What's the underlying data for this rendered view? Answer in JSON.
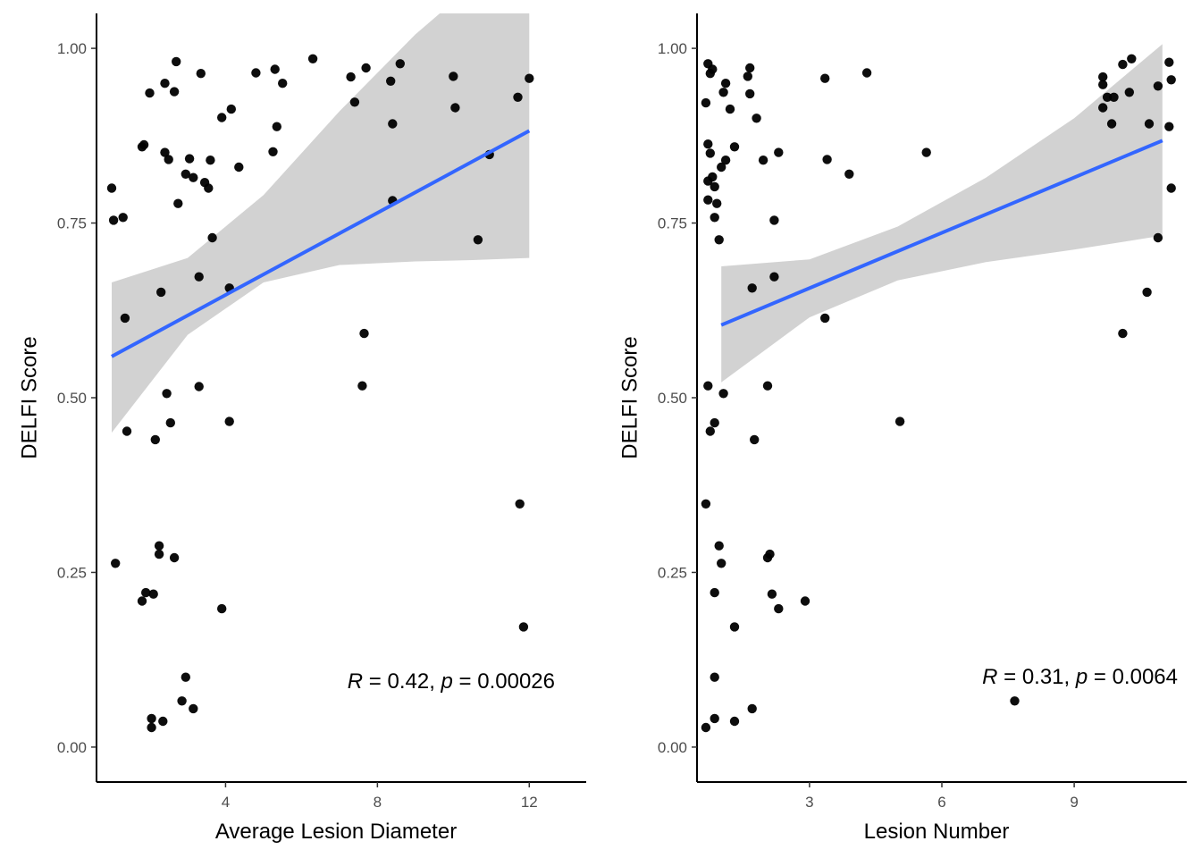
{
  "chart_data": [
    {
      "type": "scatter",
      "xlabel": "Average Lesion Diameter",
      "ylabel": "DELFI Score",
      "xlim": [
        0.6,
        13.5
      ],
      "ylim": [
        -0.05,
        1.05
      ],
      "xticks": [
        4,
        8,
        12
      ],
      "yticks": [
        0.0,
        0.25,
        0.5,
        0.75,
        1.0
      ],
      "ytick_labels": [
        "0.00",
        "0.25",
        "0.50",
        "0.75",
        "1.00"
      ],
      "grid": false,
      "annotation": {
        "R": "0.42",
        "p": "0.00026"
      },
      "fit": {
        "x": [
          1.0,
          12.0
        ],
        "y": [
          0.559,
          0.882
        ]
      },
      "ci_upper": [
        [
          1.0,
          0.665
        ],
        [
          3.0,
          0.7
        ],
        [
          5.0,
          0.79
        ],
        [
          7.0,
          0.91
        ],
        [
          9.0,
          1.02
        ],
        [
          10.5,
          1.09
        ],
        [
          12.0,
          1.175
        ]
      ],
      "ci_lower": [
        [
          1.0,
          0.45
        ],
        [
          3.0,
          0.59
        ],
        [
          5.0,
          0.665
        ],
        [
          7.0,
          0.69
        ],
        [
          9.0,
          0.695
        ],
        [
          10.5,
          0.697
        ],
        [
          12.0,
          0.7
        ]
      ],
      "points": [
        [
          1.0,
          0.8
        ],
        [
          1.05,
          0.754
        ],
        [
          1.3,
          0.758
        ],
        [
          1.35,
          0.614
        ],
        [
          1.4,
          0.452
        ],
        [
          1.1,
          0.263
        ],
        [
          1.8,
          0.859
        ],
        [
          1.85,
          0.862
        ],
        [
          2.0,
          0.936
        ],
        [
          2.05,
          0.041
        ],
        [
          2.05,
          0.028
        ],
        [
          2.1,
          0.219
        ],
        [
          2.15,
          0.44
        ],
        [
          1.9,
          0.221
        ],
        [
          1.8,
          0.209
        ],
        [
          2.25,
          0.276
        ],
        [
          2.25,
          0.288
        ],
        [
          2.3,
          0.651
        ],
        [
          2.4,
          0.95
        ],
        [
          2.4,
          0.851
        ],
        [
          2.45,
          0.506
        ],
        [
          2.5,
          0.841
        ],
        [
          2.55,
          0.464
        ],
        [
          2.65,
          0.938
        ],
        [
          2.7,
          0.981
        ],
        [
          2.75,
          0.778
        ],
        [
          2.65,
          0.271
        ],
        [
          2.35,
          0.037
        ],
        [
          2.85,
          0.066
        ],
        [
          2.95,
          0.1
        ],
        [
          2.95,
          0.82
        ],
        [
          3.05,
          0.842
        ],
        [
          3.15,
          0.815
        ],
        [
          3.15,
          0.055
        ],
        [
          3.3,
          0.673
        ],
        [
          3.3,
          0.516
        ],
        [
          3.35,
          0.964
        ],
        [
          3.45,
          0.808
        ],
        [
          3.55,
          0.8
        ],
        [
          3.6,
          0.84
        ],
        [
          3.65,
          0.729
        ],
        [
          3.9,
          0.901
        ],
        [
          3.9,
          0.198
        ],
        [
          4.1,
          0.466
        ],
        [
          4.1,
          0.657
        ],
        [
          4.15,
          0.913
        ],
        [
          4.35,
          0.83
        ],
        [
          4.8,
          0.965
        ],
        [
          5.25,
          0.852
        ],
        [
          5.3,
          0.97
        ],
        [
          5.35,
          0.888
        ],
        [
          5.5,
          0.95
        ],
        [
          6.3,
          0.985
        ],
        [
          7.3,
          0.959
        ],
        [
          7.4,
          0.923
        ],
        [
          7.6,
          0.517
        ],
        [
          7.65,
          0.592
        ],
        [
          7.7,
          0.972
        ],
        [
          8.35,
          0.953
        ],
        [
          8.4,
          0.892
        ],
        [
          8.4,
          0.782
        ],
        [
          8.6,
          0.978
        ],
        [
          10.0,
          0.96
        ],
        [
          10.05,
          0.915
        ],
        [
          10.65,
          0.726
        ],
        [
          10.95,
          0.848
        ],
        [
          11.7,
          0.93
        ],
        [
          11.75,
          0.348
        ],
        [
          11.85,
          0.172
        ],
        [
          12.0,
          0.957
        ]
      ]
    },
    {
      "type": "scatter",
      "xlabel": "Lesion Number",
      "ylabel": "DELFI Score",
      "xlim": [
        0.45,
        11.55
      ],
      "ylim": [
        -0.05,
        1.05
      ],
      "xticks": [
        3,
        6,
        9
      ],
      "yticks": [
        0.0,
        0.25,
        0.5,
        0.75,
        1.0
      ],
      "ytick_labels": [
        "0.00",
        "0.25",
        "0.50",
        "0.75",
        "1.00"
      ],
      "grid": false,
      "annotation": {
        "R": "0.31",
        "p": "0.0064"
      },
      "fit": {
        "x": [
          1.0,
          11.0
        ],
        "y": [
          0.604,
          0.868
        ]
      },
      "ci_upper": [
        [
          1.0,
          0.688
        ],
        [
          3.0,
          0.698
        ],
        [
          5.0,
          0.745
        ],
        [
          7.0,
          0.815
        ],
        [
          9.0,
          0.9
        ],
        [
          11.0,
          1.006
        ]
      ],
      "ci_lower": [
        [
          1.0,
          0.522
        ],
        [
          3.0,
          0.615
        ],
        [
          5.0,
          0.668
        ],
        [
          7.0,
          0.694
        ],
        [
          9.0,
          0.712
        ],
        [
          11.0,
          0.732
        ]
      ],
      "points": [
        [
          0.65,
          0.922
        ],
        [
          0.7,
          0.978
        ],
        [
          0.75,
          0.964
        ],
        [
          0.8,
          0.97
        ],
        [
          0.7,
          0.863
        ],
        [
          0.75,
          0.85
        ],
        [
          0.7,
          0.81
        ],
        [
          0.7,
          0.783
        ],
        [
          0.8,
          0.816
        ],
        [
          0.85,
          0.802
        ],
        [
          0.85,
          0.758
        ],
        [
          0.9,
          0.778
        ],
        [
          0.95,
          0.726
        ],
        [
          1.0,
          0.83
        ],
        [
          1.05,
          0.937
        ],
        [
          1.1,
          0.84
        ],
        [
          1.1,
          0.95
        ],
        [
          1.2,
          0.913
        ],
        [
          1.3,
          0.859
        ],
        [
          1.6,
          0.96
        ],
        [
          1.65,
          0.972
        ],
        [
          1.65,
          0.935
        ],
        [
          1.8,
          0.9
        ],
        [
          1.95,
          0.84
        ],
        [
          2.3,
          0.851
        ],
        [
          1.7,
          0.657
        ],
        [
          2.2,
          0.673
        ],
        [
          2.2,
          0.754
        ],
        [
          0.7,
          0.517
        ],
        [
          0.75,
          0.452
        ],
        [
          0.85,
          0.464
        ],
        [
          1.05,
          0.506
        ],
        [
          1.75,
          0.44
        ],
        [
          2.05,
          0.517
        ],
        [
          0.65,
          0.348
        ],
        [
          0.95,
          0.288
        ],
        [
          1.0,
          0.263
        ],
        [
          0.85,
          0.221
        ],
        [
          2.05,
          0.271
        ],
        [
          2.1,
          0.276
        ],
        [
          2.15,
          0.219
        ],
        [
          2.3,
          0.198
        ],
        [
          2.9,
          0.209
        ],
        [
          1.3,
          0.172
        ],
        [
          0.85,
          0.1
        ],
        [
          0.85,
          0.041
        ],
        [
          0.65,
          0.028
        ],
        [
          1.3,
          0.037
        ],
        [
          1.7,
          0.055
        ],
        [
          3.35,
          0.957
        ],
        [
          4.3,
          0.965
        ],
        [
          3.4,
          0.841
        ],
        [
          3.9,
          0.82
        ],
        [
          5.65,
          0.851
        ],
        [
          3.35,
          0.614
        ],
        [
          5.05,
          0.466
        ],
        [
          7.65,
          0.066
        ],
        [
          9.65,
          0.959
        ],
        [
          9.65,
          0.948
        ],
        [
          9.75,
          0.93
        ],
        [
          9.65,
          0.915
        ],
        [
          9.85,
          0.892
        ],
        [
          9.9,
          0.93
        ],
        [
          10.1,
          0.977
        ],
        [
          10.3,
          0.985
        ],
        [
          10.25,
          0.937
        ],
        [
          10.1,
          0.592
        ],
        [
          10.65,
          0.651
        ],
        [
          10.7,
          0.892
        ],
        [
          10.9,
          0.946
        ],
        [
          10.9,
          0.729
        ],
        [
          11.15,
          0.98
        ],
        [
          11.2,
          0.955
        ],
        [
          11.15,
          0.888
        ],
        [
          11.2,
          0.8
        ]
      ]
    }
  ],
  "colors": {
    "fit_line": "#3366ff",
    "ci_band": "#d0d0d0",
    "points": "#000000",
    "axis": "#000000",
    "tick_label": "#4d4d4d"
  }
}
